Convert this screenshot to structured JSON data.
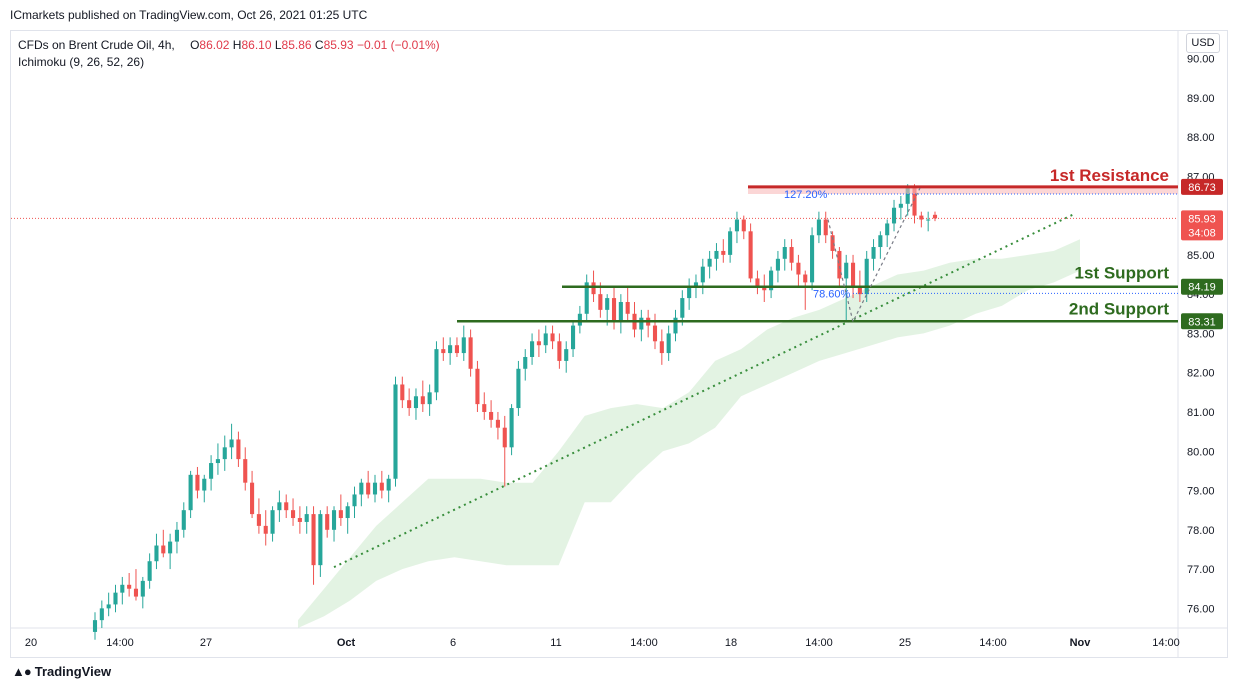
{
  "header": {
    "publish_text": "ICmarkets published on TradingView.com, Oct 26, 2021 01:25 UTC"
  },
  "legend": {
    "symbol": "CFDs on Brent Crude Oil, 4h,",
    "indicator": "Ichimoku (9, 26, 52, 26)",
    "open_label": "O",
    "open": "86.02",
    "high_label": "H",
    "high": "86.10",
    "low_label": "L",
    "low": "85.86",
    "close_label": "C",
    "close": "85.93",
    "change": "−0.01 (−0.01%)"
  },
  "currency_button": "USD",
  "footer": {
    "brand": "TradingView"
  },
  "colors": {
    "up": "#26a69a",
    "down": "#ef5350",
    "resistance": "#c62828",
    "support": "#2e6b1f",
    "cloud": "#d9efd9",
    "trendline": "#388e3c",
    "fib": "#2962ff",
    "price_line": "#ef5350"
  },
  "annotations": {
    "resistance_label": "1st Resistance",
    "support1_label": "1st Support",
    "support2_label": "2nd Support",
    "fib_127_label": "127.20%",
    "fib_786_label": "78.60%"
  },
  "chart_data": {
    "type": "candlestick",
    "ylim": [
      75.5,
      90.7
    ],
    "y_ticks": [
      "90.00",
      "89.00",
      "88.00",
      "87.00",
      "86.00",
      "85.00",
      "84.00",
      "83.00",
      "82.00",
      "81.00",
      "80.00",
      "79.00",
      "78.00",
      "77.00",
      "76.00"
    ],
    "x_ticks": [
      "20",
      "14:00",
      "27",
      "Oct",
      "6",
      "11",
      "14:00",
      "18",
      "14:00",
      "25",
      "14:00",
      "Nov",
      "14:00"
    ],
    "levels": {
      "resistance": "86.73",
      "support1": "84.19",
      "support2": "83.31",
      "last_price": "85.93",
      "countdown": "34:08"
    },
    "fib_levels": {
      "127.20%": 86.55,
      "78.60%": 84.02
    },
    "trendline": {
      "from": 77.05,
      "to": 86.05
    },
    "candles": [
      [
        75.4,
        75.9,
        75.2,
        75.7
      ],
      [
        75.7,
        76.2,
        75.5,
        76.0
      ],
      [
        76.0,
        76.4,
        75.8,
        76.1
      ],
      [
        76.1,
        76.6,
        75.9,
        76.4
      ],
      [
        76.4,
        76.8,
        76.1,
        76.6
      ],
      [
        76.6,
        76.9,
        76.3,
        76.5
      ],
      [
        76.5,
        77.0,
        76.2,
        76.3
      ],
      [
        76.3,
        76.8,
        76.0,
        76.7
      ],
      [
        76.7,
        77.4,
        76.5,
        77.2
      ],
      [
        77.2,
        77.9,
        77.0,
        77.6
      ],
      [
        77.6,
        78.0,
        77.3,
        77.4
      ],
      [
        77.4,
        77.9,
        77.0,
        77.7
      ],
      [
        77.7,
        78.2,
        77.4,
        78.0
      ],
      [
        78.0,
        78.7,
        77.8,
        78.5
      ],
      [
        78.5,
        79.5,
        78.3,
        79.4
      ],
      [
        79.4,
        79.6,
        78.8,
        79.0
      ],
      [
        79.0,
        79.4,
        78.7,
        79.3
      ],
      [
        79.3,
        79.9,
        79.0,
        79.7
      ],
      [
        79.7,
        80.2,
        79.4,
        79.8
      ],
      [
        79.8,
        80.4,
        79.5,
        80.1
      ],
      [
        80.1,
        80.7,
        79.8,
        80.3
      ],
      [
        80.3,
        80.5,
        79.6,
        79.8
      ],
      [
        79.8,
        80.1,
        79.0,
        79.2
      ],
      [
        79.2,
        79.5,
        78.3,
        78.4
      ],
      [
        78.4,
        78.8,
        77.9,
        78.1
      ],
      [
        78.1,
        78.5,
        77.6,
        77.9
      ],
      [
        77.9,
        78.6,
        77.7,
        78.5
      ],
      [
        78.5,
        79.0,
        78.2,
        78.7
      ],
      [
        78.7,
        78.9,
        78.3,
        78.5
      ],
      [
        78.5,
        78.8,
        78.1,
        78.3
      ],
      [
        78.3,
        78.6,
        77.9,
        78.2
      ],
      [
        78.2,
        78.6,
        77.9,
        78.4
      ],
      [
        78.4,
        78.6,
        76.6,
        77.1
      ],
      [
        77.1,
        78.5,
        76.8,
        78.4
      ],
      [
        78.4,
        78.6,
        77.8,
        78.0
      ],
      [
        78.0,
        78.6,
        77.7,
        78.5
      ],
      [
        78.5,
        78.9,
        78.1,
        78.3
      ],
      [
        78.3,
        78.7,
        77.9,
        78.6
      ],
      [
        78.6,
        79.1,
        78.3,
        78.9
      ],
      [
        78.9,
        79.3,
        78.6,
        79.2
      ],
      [
        79.2,
        79.5,
        78.8,
        78.9
      ],
      [
        78.9,
        79.4,
        78.7,
        79.2
      ],
      [
        79.2,
        79.5,
        78.8,
        79.0
      ],
      [
        79.0,
        79.4,
        78.7,
        79.3
      ],
      [
        79.3,
        81.9,
        79.1,
        81.7
      ],
      [
        81.7,
        81.9,
        81.1,
        81.3
      ],
      [
        81.3,
        81.6,
        80.9,
        81.1
      ],
      [
        81.1,
        81.6,
        80.8,
        81.4
      ],
      [
        81.4,
        81.8,
        81.0,
        81.2
      ],
      [
        81.2,
        81.7,
        80.9,
        81.5
      ],
      [
        81.5,
        82.8,
        81.3,
        82.6
      ],
      [
        82.6,
        82.9,
        82.3,
        82.5
      ],
      [
        82.5,
        82.9,
        82.2,
        82.7
      ],
      [
        82.7,
        82.9,
        82.4,
        82.5
      ],
      [
        82.5,
        83.2,
        82.3,
        82.9
      ],
      [
        82.9,
        83.1,
        81.9,
        82.1
      ],
      [
        82.1,
        82.3,
        81.0,
        81.2
      ],
      [
        81.2,
        81.5,
        80.8,
        81.0
      ],
      [
        81.0,
        81.3,
        80.6,
        80.8
      ],
      [
        80.8,
        81.0,
        80.3,
        80.6
      ],
      [
        80.6,
        80.9,
        79.1,
        80.1
      ],
      [
        80.1,
        81.2,
        79.9,
        81.1
      ],
      [
        81.1,
        82.3,
        80.9,
        82.1
      ],
      [
        82.1,
        82.6,
        81.8,
        82.4
      ],
      [
        82.4,
        83.0,
        82.2,
        82.8
      ],
      [
        82.8,
        83.1,
        82.4,
        82.7
      ],
      [
        82.7,
        83.2,
        82.5,
        83.0
      ],
      [
        83.0,
        83.2,
        82.6,
        82.8
      ],
      [
        82.8,
        83.0,
        82.1,
        82.3
      ],
      [
        82.3,
        82.8,
        82.0,
        82.6
      ],
      [
        82.6,
        83.3,
        82.4,
        83.2
      ],
      [
        83.2,
        83.7,
        83.0,
        83.5
      ],
      [
        83.5,
        84.5,
        83.3,
        84.3
      ],
      [
        84.3,
        84.6,
        83.8,
        84.0
      ],
      [
        84.0,
        84.3,
        83.4,
        83.6
      ],
      [
        83.6,
        84.0,
        83.2,
        83.9
      ],
      [
        83.9,
        84.2,
        83.1,
        83.3
      ],
      [
        83.3,
        84.0,
        83.0,
        83.8
      ],
      [
        83.8,
        84.2,
        83.3,
        83.5
      ],
      [
        83.5,
        83.8,
        82.9,
        83.1
      ],
      [
        83.1,
        83.6,
        82.8,
        83.4
      ],
      [
        83.4,
        83.6,
        82.9,
        83.2
      ],
      [
        83.2,
        83.5,
        82.6,
        82.8
      ],
      [
        82.8,
        83.1,
        82.2,
        82.5
      ],
      [
        82.5,
        83.2,
        82.3,
        83.0
      ],
      [
        83.0,
        83.6,
        82.8,
        83.4
      ],
      [
        83.4,
        84.1,
        83.2,
        83.9
      ],
      [
        83.9,
        84.4,
        83.6,
        84.2
      ],
      [
        84.2,
        84.5,
        83.9,
        84.3
      ],
      [
        84.3,
        84.9,
        84.0,
        84.7
      ],
      [
        84.7,
        85.1,
        84.4,
        84.9
      ],
      [
        84.9,
        85.3,
        84.6,
        85.1
      ],
      [
        85.1,
        85.4,
        84.8,
        85.0
      ],
      [
        85.0,
        85.7,
        84.8,
        85.6
      ],
      [
        85.6,
        86.1,
        85.3,
        85.9
      ],
      [
        85.9,
        86.0,
        85.4,
        85.6
      ],
      [
        85.6,
        85.8,
        84.3,
        84.4
      ],
      [
        84.4,
        84.6,
        84.0,
        84.2
      ],
      [
        84.2,
        84.5,
        83.8,
        84.1
      ],
      [
        84.1,
        84.7,
        83.9,
        84.6
      ],
      [
        84.6,
        85.1,
        84.3,
        84.9
      ],
      [
        84.9,
        85.4,
        84.6,
        85.2
      ],
      [
        85.2,
        85.4,
        84.6,
        84.8
      ],
      [
        84.8,
        85.0,
        84.2,
        84.5
      ],
      [
        84.5,
        84.6,
        83.6,
        84.3
      ],
      [
        84.3,
        85.7,
        84.1,
        85.5
      ],
      [
        85.5,
        86.1,
        85.3,
        85.9
      ],
      [
        85.9,
        86.1,
        85.3,
        85.5
      ],
      [
        85.5,
        85.6,
        84.9,
        85.1
      ],
      [
        85.1,
        85.2,
        84.2,
        84.4
      ],
      [
        84.4,
        85.0,
        83.3,
        84.8
      ],
      [
        84.8,
        85.0,
        83.9,
        84.2
      ],
      [
        84.2,
        84.6,
        83.8,
        84.0
      ],
      [
        84.0,
        85.1,
        83.8,
        84.9
      ],
      [
        84.9,
        85.4,
        84.6,
        85.2
      ],
      [
        85.2,
        85.6,
        84.9,
        85.5
      ],
      [
        85.5,
        85.9,
        85.2,
        85.8
      ],
      [
        85.8,
        86.4,
        85.6,
        86.2
      ],
      [
        86.2,
        86.5,
        85.9,
        86.3
      ],
      [
        86.3,
        86.8,
        86.0,
        86.7
      ],
      [
        86.7,
        86.8,
        85.8,
        86.0
      ],
      [
        86.0,
        86.1,
        85.7,
        85.9
      ],
      [
        85.9,
        86.1,
        85.6,
        85.9
      ],
      [
        86.02,
        86.1,
        85.86,
        85.93
      ]
    ],
    "cloud_lower": [
      75.5,
      75.8,
      76.2,
      76.7,
      77.0,
      77.2,
      77.3,
      77.2,
      77.1,
      77.1,
      77.1,
      78.7,
      78.7,
      79.4,
      80.0,
      80.2,
      80.6,
      81.4,
      81.7,
      82.0,
      82.3,
      82.5,
      82.7,
      82.9,
      83.0,
      83.2,
      83.5,
      83.7,
      84.1,
      84.3,
      84.6
    ],
    "cloud_upper": [
      75.7,
      76.5,
      77.3,
      78.1,
      78.7,
      79.3,
      79.3,
      79.3,
      79.2,
      79.2,
      80.0,
      80.9,
      81.1,
      81.2,
      81.1,
      81.5,
      82.3,
      82.6,
      83.1,
      83.4,
      83.6,
      83.9,
      84.2,
      84.5,
      84.6,
      84.8,
      84.9,
      84.9,
      85.0,
      85.1,
      85.4
    ]
  }
}
